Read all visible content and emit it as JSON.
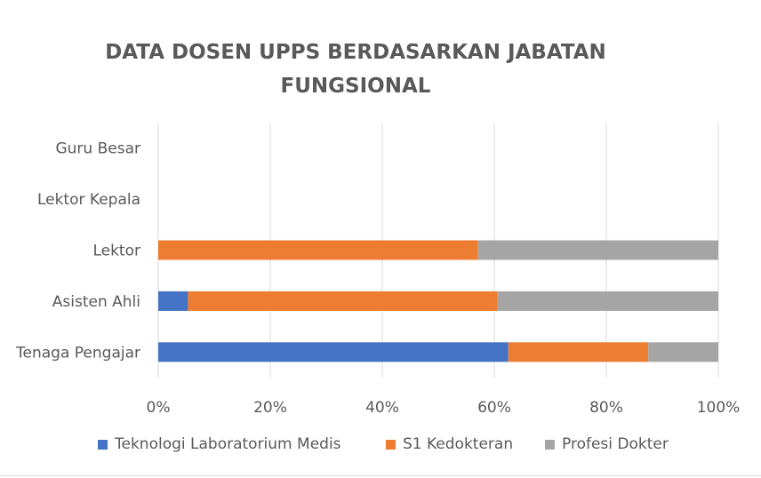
{
  "chart_data": {
    "type": "bar",
    "orientation": "horizontal",
    "stacked": "percent",
    "title_lines": [
      "DATA DOSEN UPPS BERDASARKAN JABATAN",
      "FUNGSIONAL"
    ],
    "categories": [
      "Guru Besar",
      "Lektor Kepala",
      "Lektor",
      "Asisten Ahli",
      "Tenaga Pengajar"
    ],
    "series": [
      {
        "name": "Teknologi Laboratorium Medis",
        "color": "#4472C4",
        "values": [
          0,
          0,
          0,
          5.3,
          62.5
        ]
      },
      {
        "name": "S1 Kedokteran",
        "color": "#ED7D31",
        "values": [
          0,
          0,
          57.1,
          55.3,
          25.0
        ]
      },
      {
        "name": "Profesi Dokter",
        "color": "#A5A5A5",
        "values": [
          0,
          0,
          42.9,
          39.4,
          12.5
        ]
      }
    ],
    "xticks": [
      "0%",
      "20%",
      "40%",
      "60%",
      "80%",
      "100%"
    ],
    "xlim": [
      0,
      100
    ],
    "grid": true,
    "legend_position": "bottom"
  }
}
